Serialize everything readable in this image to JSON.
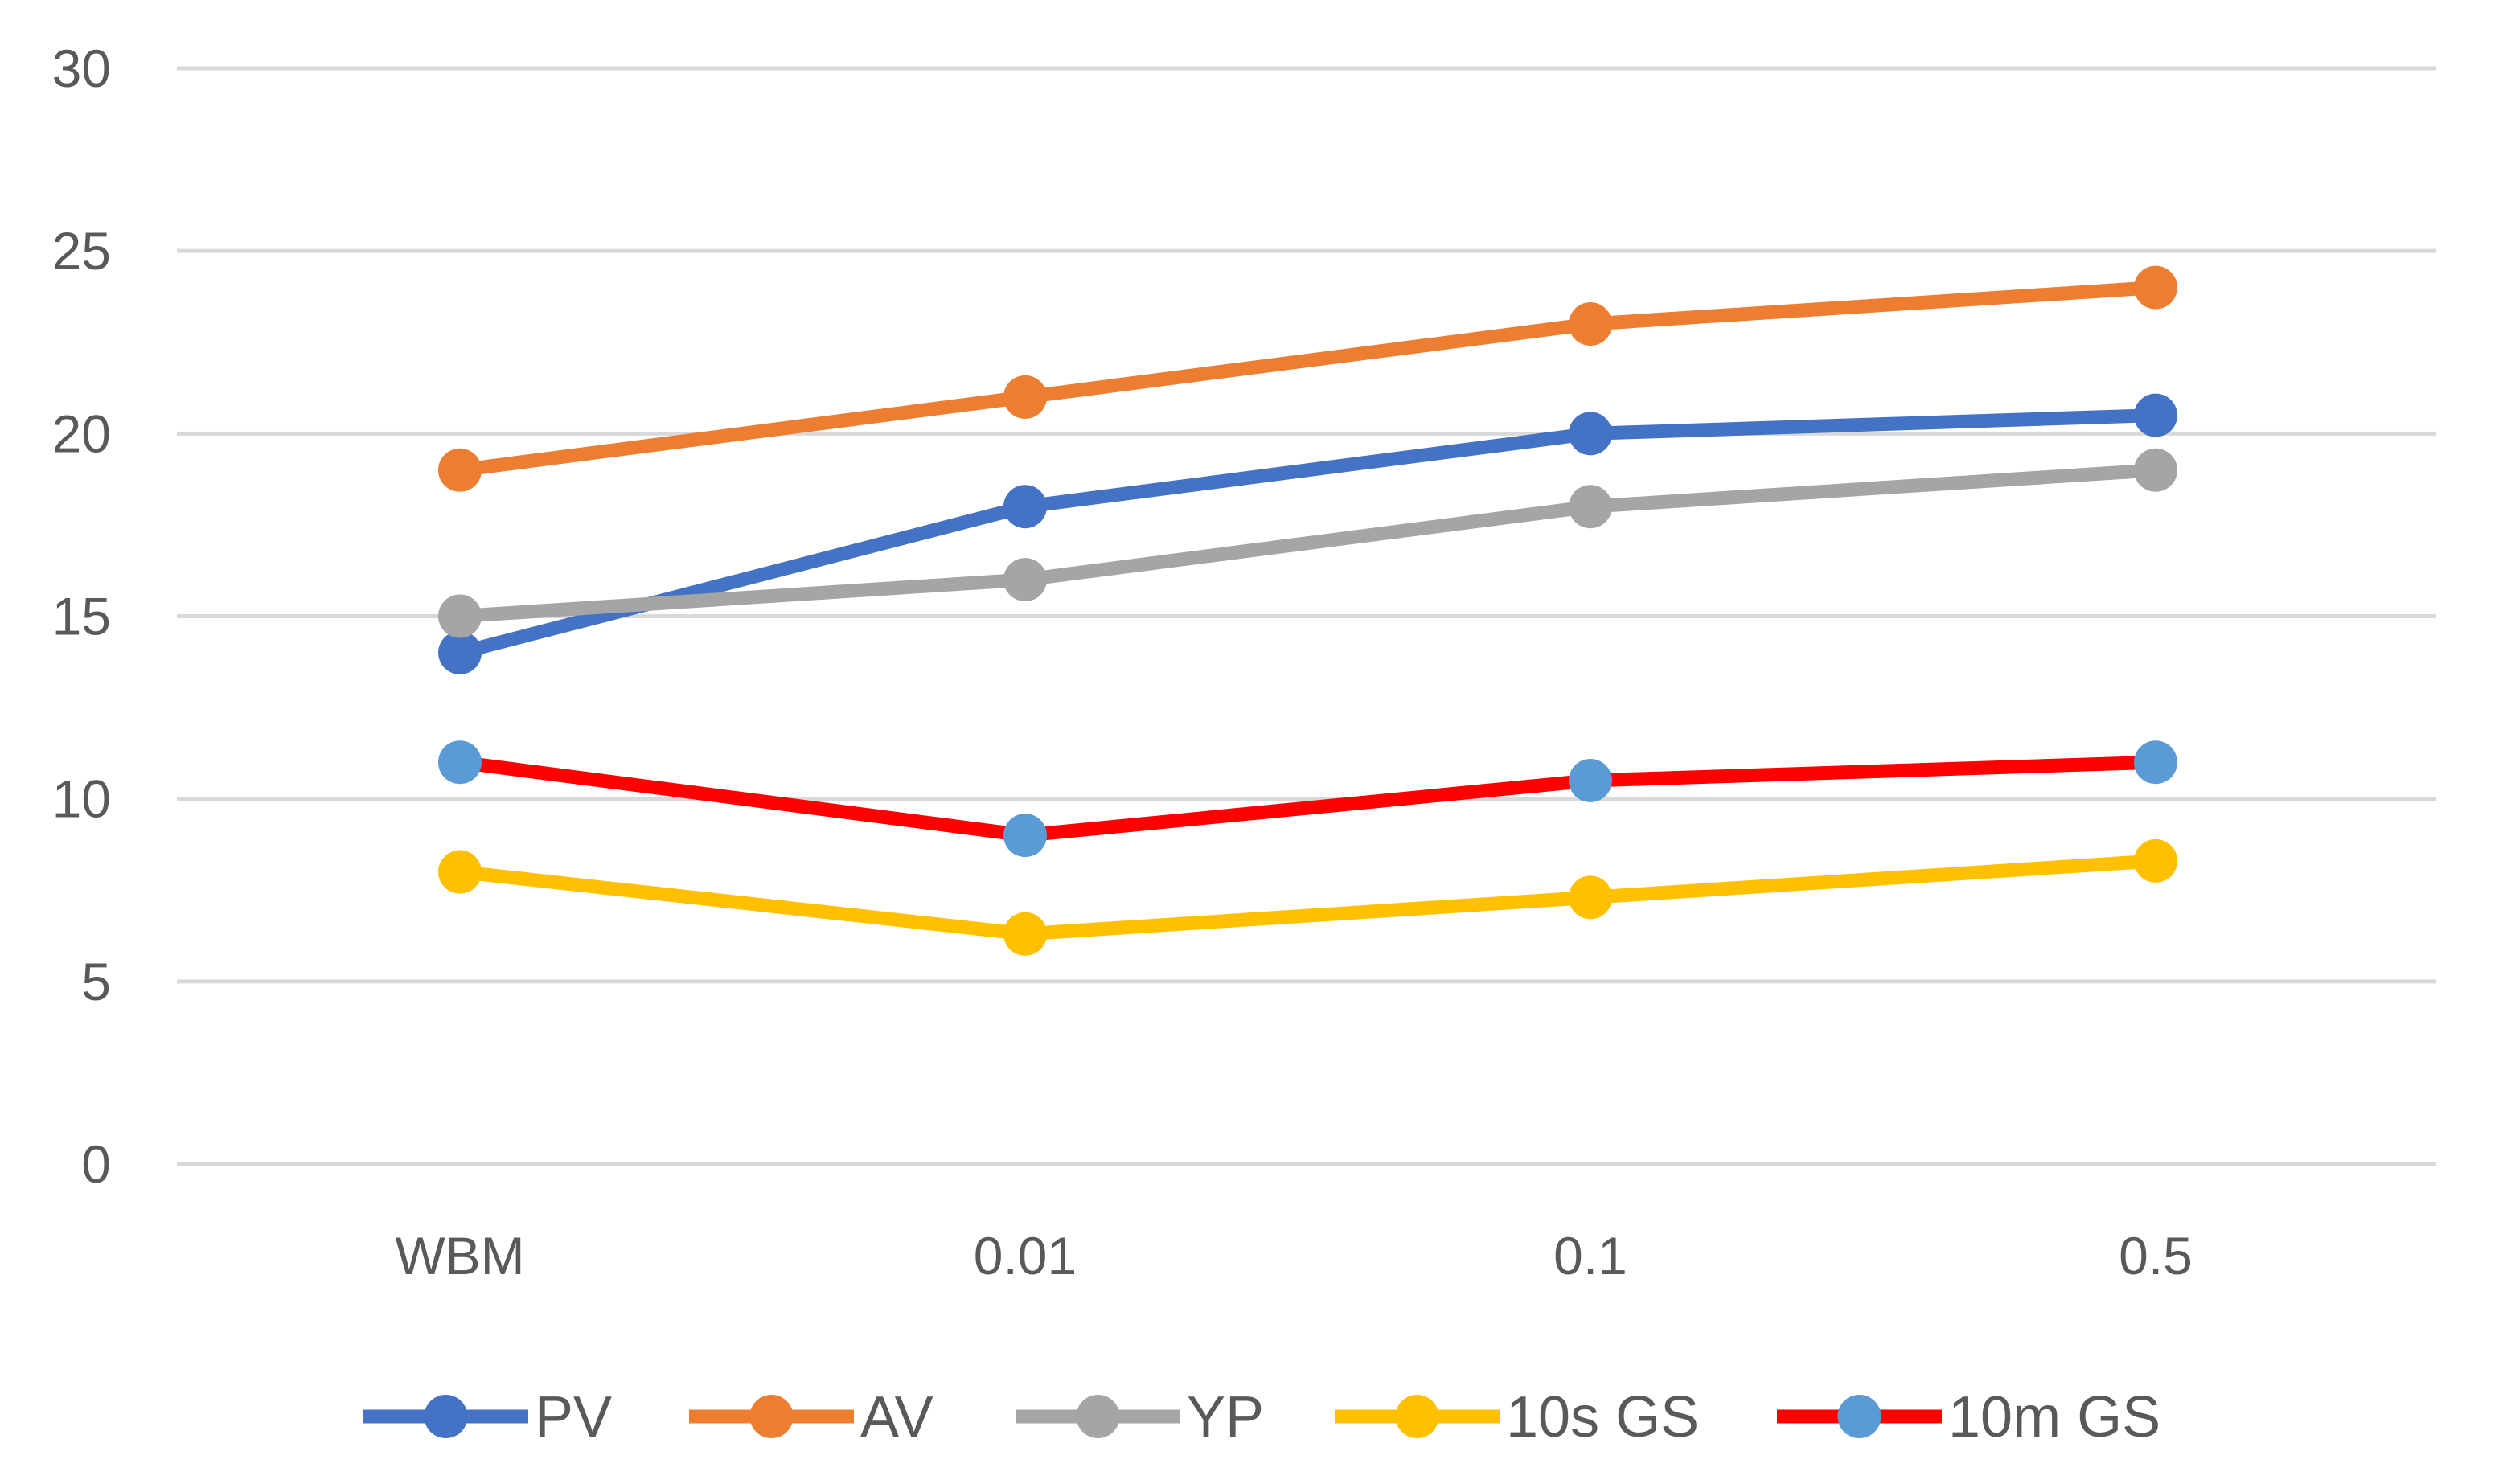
{
  "colors": {
    "PV": "#4472C4",
    "AV": "#ED7D31",
    "YP": "#A5A5A5",
    "10s GS": "#FFC000",
    "10m GS": "#FF0000",
    "10m GS marker": "#5B9BD5",
    "grid": "#D9D9D9",
    "text": "#595959"
  },
  "chart_data": {
    "type": "line",
    "title": "",
    "xlabel": "",
    "ylabel": "",
    "categories": [
      "WBM",
      "0.01",
      "0.1",
      "0.5"
    ],
    "ylim": [
      0,
      30
    ],
    "yticks": [
      0,
      5,
      10,
      15,
      20,
      25,
      30
    ],
    "ytick_labels": [
      "0",
      "5",
      "10",
      "15",
      "20",
      "25",
      "30"
    ],
    "grid": true,
    "legend_position": "bottom",
    "series": [
      {
        "name": "PV",
        "values": [
          14,
          18,
          20,
          20.5
        ]
      },
      {
        "name": "AV",
        "values": [
          19,
          21,
          23,
          24
        ]
      },
      {
        "name": "YP",
        "values": [
          15,
          16,
          18,
          19
        ]
      },
      {
        "name": "10s GS",
        "values": [
          8,
          6.3,
          7.3,
          8.3
        ]
      },
      {
        "name": "10m GS",
        "values": [
          11,
          9,
          10.5,
          11
        ]
      }
    ]
  }
}
